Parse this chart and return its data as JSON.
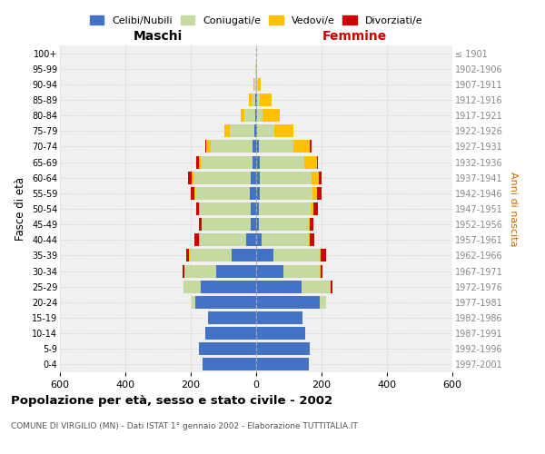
{
  "age_groups": [
    "0-4",
    "5-9",
    "10-14",
    "15-19",
    "20-24",
    "25-29",
    "30-34",
    "35-39",
    "40-44",
    "45-49",
    "50-54",
    "55-59",
    "60-64",
    "65-69",
    "70-74",
    "75-79",
    "80-84",
    "85-89",
    "90-94",
    "95-99",
    "100+"
  ],
  "birth_years": [
    "1997-2001",
    "1992-1996",
    "1987-1991",
    "1982-1986",
    "1977-1981",
    "1972-1976",
    "1967-1971",
    "1962-1966",
    "1957-1961",
    "1952-1956",
    "1947-1951",
    "1942-1946",
    "1937-1941",
    "1932-1936",
    "1927-1931",
    "1922-1926",
    "1917-1921",
    "1912-1916",
    "1907-1911",
    "1902-1906",
    "≤ 1901"
  ],
  "male_celibi": [
    165,
    175,
    155,
    148,
    185,
    170,
    122,
    75,
    30,
    18,
    18,
    20,
    18,
    12,
    10,
    5,
    3,
    2,
    1,
    0,
    0
  ],
  "male_coniugati": [
    0,
    0,
    0,
    0,
    12,
    52,
    98,
    128,
    142,
    148,
    155,
    165,
    175,
    158,
    130,
    75,
    32,
    12,
    4,
    2,
    0
  ],
  "male_vedovi": [
    0,
    0,
    0,
    0,
    0,
    0,
    0,
    2,
    2,
    2,
    2,
    4,
    4,
    4,
    12,
    18,
    12,
    8,
    4,
    1,
    0
  ],
  "male_divorziati": [
    0,
    0,
    0,
    0,
    0,
    0,
    5,
    10,
    14,
    8,
    8,
    10,
    12,
    8,
    4,
    0,
    0,
    0,
    0,
    0,
    0
  ],
  "female_nubili": [
    162,
    165,
    150,
    142,
    195,
    140,
    82,
    52,
    18,
    8,
    8,
    10,
    10,
    10,
    8,
    4,
    2,
    2,
    1,
    0,
    0
  ],
  "female_coniugate": [
    0,
    0,
    0,
    0,
    18,
    88,
    112,
    142,
    142,
    152,
    158,
    162,
    160,
    138,
    105,
    52,
    18,
    8,
    4,
    2,
    0
  ],
  "female_vedove": [
    0,
    0,
    0,
    0,
    0,
    0,
    2,
    2,
    4,
    4,
    8,
    14,
    22,
    38,
    52,
    58,
    52,
    38,
    8,
    2,
    0
  ],
  "female_divorziate": [
    0,
    0,
    0,
    0,
    0,
    4,
    8,
    18,
    14,
    10,
    14,
    14,
    8,
    4,
    4,
    0,
    0,
    0,
    0,
    0,
    0
  ],
  "colors": {
    "celibi": "#4472c4",
    "coniugati": "#c5d9a0",
    "vedovi": "#ffc000",
    "divorziati": "#cc0000"
  },
  "title": "Popolazione per età, sesso e stato civile - 2002",
  "subtitle": "COMUNE DI VIRGILIO (MN) - Dati ISTAT 1° gennaio 2002 - Elaborazione TUTTITALIA.IT",
  "ylabel_left": "Fasce di età",
  "ylabel_right": "Anni di nascita",
  "label_maschi": "Maschi",
  "label_femmine": "Femmine",
  "xlim": 600,
  "legend_labels": [
    "Celibi/Nubili",
    "Coniugati/e",
    "Vedovi/e",
    "Divorziati/e"
  ],
  "background_color": "#ffffff",
  "plot_bg_color": "#f0f0f0",
  "grid_color": "#cccccc"
}
